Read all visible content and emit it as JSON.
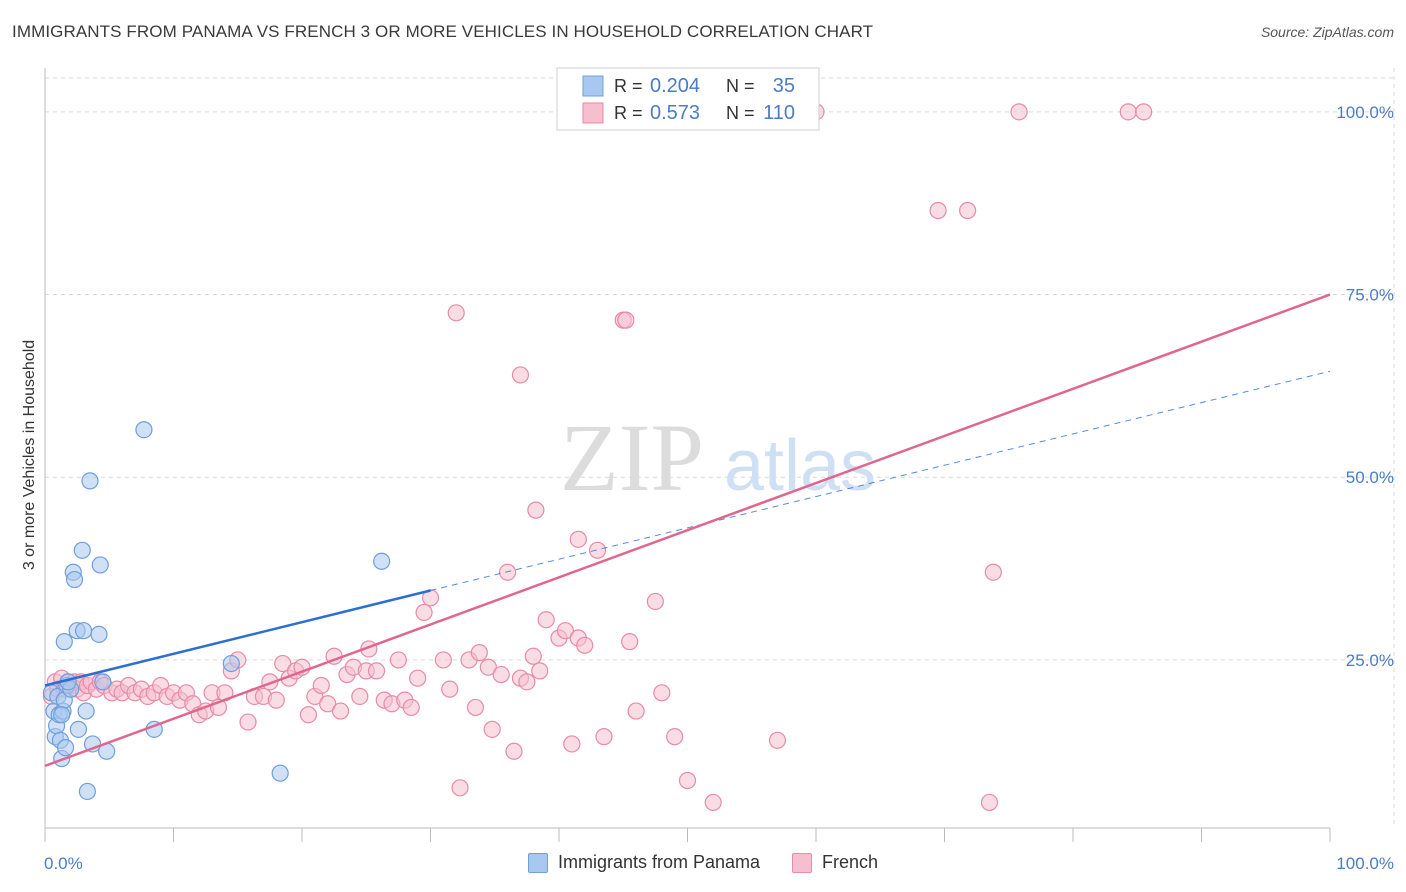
{
  "title": "IMMIGRANTS FROM PANAMA VS FRENCH 3 OR MORE VEHICLES IN HOUSEHOLD CORRELATION CHART",
  "source": "Source: ZipAtlas.com",
  "watermark": {
    "zip": "ZIP",
    "atlas": "atlas"
  },
  "colors": {
    "blue_fill": "#a9c8f0",
    "blue_stroke": "#6f9fd8",
    "blue_line": "#2b6fd1",
    "pink_fill": "#f6bfd0",
    "pink_stroke": "#e88aa8",
    "pink_line": "#e0668e",
    "tick_label": "#4a7cc7",
    "grid": "#d9d9d9"
  },
  "stats_legend": [
    {
      "r_label": "R =",
      "r_value": "0.204",
      "n_label": "N =",
      "n_value": "35"
    },
    {
      "r_label": "R =",
      "r_value": "0.573",
      "n_label": "N =",
      "n_value": "110"
    }
  ],
  "chart_data": {
    "type": "scatter",
    "xlabel": "",
    "ylabel": "3 or more Vehicles in Household",
    "xlim": [
      0,
      100
    ],
    "ylim": [
      2,
      106
    ],
    "x_tick_labels": [
      "0.0%",
      "100.0%"
    ],
    "y_ticks": [
      25,
      50,
      75,
      100
    ],
    "y_tick_labels": [
      "25.0%",
      "50.0%",
      "75.0%",
      "100.0%"
    ],
    "grid": true,
    "legend_position": "top-center",
    "series": [
      {
        "name": "Immigrants from Panama",
        "color": "#a9c8f0",
        "points": [
          [
            0.5,
            20.5
          ],
          [
            0.7,
            18
          ],
          [
            0.8,
            14.5
          ],
          [
            0.9,
            16
          ],
          [
            1.0,
            20
          ],
          [
            1.1,
            17.5
          ],
          [
            1.2,
            14
          ],
          [
            1.3,
            11.5
          ],
          [
            1.4,
            18
          ],
          [
            1.5,
            19.5
          ],
          [
            1.6,
            13
          ],
          [
            1.7,
            21.5
          ],
          [
            1.5,
            27.5
          ],
          [
            2.0,
            21
          ],
          [
            2.2,
            37
          ],
          [
            2.3,
            36
          ],
          [
            2.5,
            29
          ],
          [
            2.6,
            15.5
          ],
          [
            2.9,
            40
          ],
          [
            3.0,
            29
          ],
          [
            3.2,
            18
          ],
          [
            3.3,
            7
          ],
          [
            3.5,
            49.5
          ],
          [
            3.7,
            13.5
          ],
          [
            4.2,
            28.5
          ],
          [
            4.3,
            38
          ],
          [
            4.5,
            22
          ],
          [
            4.8,
            12.5
          ],
          [
            7.7,
            56.5
          ],
          [
            8.5,
            15.5
          ],
          [
            14.5,
            24.5
          ],
          [
            18.3,
            9.5
          ],
          [
            26.2,
            38.5
          ],
          [
            1.8,
            22
          ],
          [
            1.3,
            17.5
          ]
        ],
        "trend": {
          "x": [
            0,
            30
          ],
          "y": [
            21.5,
            34.5
          ],
          "dashed_to": [
            100,
            64.5
          ]
        }
      },
      {
        "name": "French",
        "color": "#f6bfd0",
        "points": [
          [
            0.5,
            20
          ],
          [
            0.8,
            22
          ],
          [
            1.0,
            21
          ],
          [
            1.3,
            22.5
          ],
          [
            1.5,
            21
          ],
          [
            1.8,
            22
          ],
          [
            2.0,
            21.5
          ],
          [
            2.3,
            22
          ],
          [
            2.5,
            21
          ],
          [
            2.8,
            22
          ],
          [
            3.0,
            20.5
          ],
          [
            3.3,
            21.5
          ],
          [
            3.6,
            22
          ],
          [
            4.0,
            21
          ],
          [
            4.3,
            22
          ],
          [
            4.6,
            21.5
          ],
          [
            5.2,
            20.5
          ],
          [
            5.6,
            21
          ],
          [
            6.0,
            20.5
          ],
          [
            6.5,
            21.5
          ],
          [
            7.0,
            20.5
          ],
          [
            7.5,
            21
          ],
          [
            8.0,
            20
          ],
          [
            8.5,
            20.5
          ],
          [
            9.0,
            21.5
          ],
          [
            9.5,
            20
          ],
          [
            10.0,
            20.5
          ],
          [
            10.5,
            19.5
          ],
          [
            11.0,
            20.5
          ],
          [
            11.5,
            19
          ],
          [
            12.0,
            17.5
          ],
          [
            12.5,
            18
          ],
          [
            13.0,
            20.5
          ],
          [
            13.5,
            18.5
          ],
          [
            14.0,
            20.5
          ],
          [
            14.5,
            23.5
          ],
          [
            15.0,
            25
          ],
          [
            15.8,
            16.5
          ],
          [
            16.3,
            20
          ],
          [
            17.0,
            20
          ],
          [
            17.5,
            22
          ],
          [
            18.0,
            19.5
          ],
          [
            18.5,
            24.5
          ],
          [
            19.0,
            22.5
          ],
          [
            19.5,
            23.5
          ],
          [
            20.0,
            24
          ],
          [
            20.5,
            17.5
          ],
          [
            21.0,
            20
          ],
          [
            21.5,
            21.5
          ],
          [
            22.0,
            19
          ],
          [
            22.5,
            25.5
          ],
          [
            23.0,
            18
          ],
          [
            23.5,
            23
          ],
          [
            24.0,
            24
          ],
          [
            24.5,
            20
          ],
          [
            25.0,
            23.5
          ],
          [
            25.2,
            26.5
          ],
          [
            25.8,
            23.5
          ],
          [
            26.4,
            19.5
          ],
          [
            27.0,
            19
          ],
          [
            27.5,
            25
          ],
          [
            28.0,
            19.5
          ],
          [
            28.5,
            18.5
          ],
          [
            29.0,
            22.5
          ],
          [
            29.5,
            31.5
          ],
          [
            30.0,
            33.5
          ],
          [
            31.0,
            25
          ],
          [
            31.5,
            21
          ],
          [
            32.0,
            72.5
          ],
          [
            32.3,
            7.5
          ],
          [
            33.0,
            25
          ],
          [
            33.5,
            18.5
          ],
          [
            33.8,
            26
          ],
          [
            34.5,
            24
          ],
          [
            34.8,
            15.5
          ],
          [
            35.5,
            23
          ],
          [
            36.0,
            37
          ],
          [
            36.5,
            12.5
          ],
          [
            37.0,
            22.5
          ],
          [
            37.5,
            22
          ],
          [
            38.0,
            25.5
          ],
          [
            38.5,
            23.5
          ],
          [
            38.2,
            45.5
          ],
          [
            39.0,
            30.5
          ],
          [
            40.0,
            28
          ],
          [
            40.5,
            29
          ],
          [
            41.0,
            13.5
          ],
          [
            41.5,
            28
          ],
          [
            42.0,
            27
          ],
          [
            43.0,
            40
          ],
          [
            43.5,
            14.5
          ],
          [
            45.0,
            71.5
          ],
          [
            45.2,
            71.5
          ],
          [
            45.5,
            27.5
          ],
          [
            46.0,
            18
          ],
          [
            47.5,
            33
          ],
          [
            48.0,
            20.5
          ],
          [
            49.0,
            14.5
          ],
          [
            50.0,
            8.5
          ],
          [
            52.0,
            5.5
          ],
          [
            57.0,
            14
          ],
          [
            69.5,
            86.5
          ],
          [
            71.8,
            86.5
          ],
          [
            73.5,
            5.5
          ],
          [
            73.8,
            37
          ],
          [
            75.8,
            100
          ],
          [
            60.0,
            100
          ],
          [
            84.3,
            100
          ],
          [
            85.5,
            100
          ],
          [
            41.5,
            41.5
          ],
          [
            37.0,
            64
          ]
        ],
        "trend": {
          "x": [
            0,
            100
          ],
          "y": [
            10.5,
            75
          ]
        }
      }
    ]
  },
  "bottom_legend": [
    "Immigrants from Panama",
    "French"
  ]
}
